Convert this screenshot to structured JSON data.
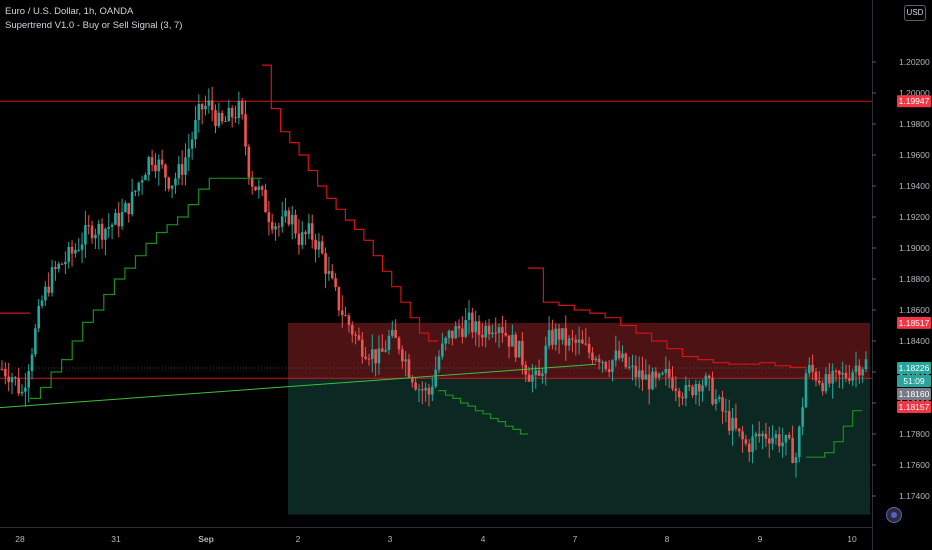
{
  "header": {
    "title": "Euro / U.S. Dollar, 1h, OANDA",
    "indicator": "Supertrend V1.0 - Buy or Sell Signal (3, 7)"
  },
  "currency_button": "USD",
  "colors": {
    "background": "#000000",
    "up": "#26a69a",
    "down": "#ef5350",
    "supertrend_up": "#1e8c1e",
    "supertrend_down": "#d0141a",
    "trendline": "#3fbf3f",
    "hline": "#c8181d",
    "axis_text": "#b2b5be",
    "badge_red": "#f23645",
    "badge_green": "#26a69a",
    "badge_gray": "#787b86",
    "short_zone": "#5a1518",
    "long_zone": "#0d2a24"
  },
  "chart_data": {
    "type": "candlestick",
    "symbol": "Euro / U.S. Dollar",
    "timeframe": "1h",
    "ylim": [
      1.172,
      1.206
    ],
    "y_ticks": [
      "1.20200",
      "1.20000",
      "1.19800",
      "1.19600",
      "1.19400",
      "1.19200",
      "1.19000",
      "1.18800",
      "1.18600",
      "1.18400",
      "1.18200",
      "1.18000",
      "1.17800",
      "1.17600",
      "1.17400"
    ],
    "x_ticks": [
      "28",
      "31",
      "Sep",
      "2",
      "3",
      "4",
      "7",
      "8",
      "9",
      "10"
    ],
    "price_badges": [
      {
        "label": "1.19947",
        "value": 1.19947,
        "color": "red"
      },
      {
        "label": "1.18517",
        "value": 1.18517,
        "color": "red"
      },
      {
        "label": "1.18226",
        "value": 1.18226,
        "color": "green"
      },
      {
        "label": "51:09",
        "value": 1.18193,
        "color": "green"
      },
      {
        "label": "1.18160",
        "value": 1.1816,
        "color": "gray"
      },
      {
        "label": "1.18157",
        "value": 1.18157,
        "color": "red"
      }
    ],
    "horizontal_lines": [
      1.19947,
      1.1816
    ],
    "close_line": 1.18226,
    "position": {
      "entry": 1.1816,
      "stop": 1.18517,
      "target": 1.1728
    },
    "trend_line": {
      "from": 1.1797,
      "to": 1.1825
    },
    "supertrend_segments": [
      {
        "trend": "down",
        "points": [
          1.1858,
          1.1858,
          1.1858,
          1.1858,
          1.1858
        ]
      },
      {
        "trend": "up",
        "points": [
          1.1803,
          1.181,
          1.182,
          1.1828,
          1.184,
          1.1852,
          1.186,
          1.187,
          1.188,
          1.1887,
          1.1895,
          1.1903,
          1.191,
          1.1915,
          1.192,
          1.1928,
          1.1938,
          1.1945,
          1.1945,
          1.1945,
          1.1945,
          1.1945
        ]
      },
      {
        "trend": "down",
        "points": [
          1.2018,
          1.199,
          1.1975,
          1.1968,
          1.196,
          1.195,
          1.194,
          1.1932,
          1.1925,
          1.1918,
          1.1912,
          1.1905,
          1.1895,
          1.1885,
          1.1875,
          1.1865,
          1.1855,
          1.1845,
          1.184
        ]
      },
      {
        "trend": "up",
        "points": [
          1.1808,
          1.1805,
          1.1803,
          1.18,
          1.1798,
          1.1795,
          1.1793,
          1.179,
          1.1788,
          1.1785,
          1.1783,
          1.178
        ]
      },
      {
        "trend": "down",
        "points": [
          1.1887,
          1.1865,
          1.1863,
          1.186,
          1.1858,
          1.1855,
          1.185,
          1.1845,
          1.184,
          1.1835,
          1.183,
          1.1828,
          1.1826,
          1.1825,
          1.1825,
          1.1826,
          1.1824,
          1.1823
        ]
      },
      {
        "trend": "up",
        "points": [
          1.1765,
          1.1765,
          1.1768,
          1.1775,
          1.1785,
          1.1795
        ]
      }
    ],
    "price_path": [
      1.1822,
      1.1818,
      1.1806,
      1.1835,
      1.1865,
      1.1882,
      1.189,
      1.1896,
      1.1905,
      1.1913,
      1.1912,
      1.1915,
      1.192,
      1.193,
      1.1946,
      1.196,
      1.1952,
      1.1942,
      1.195,
      1.1968,
      1.199,
      1.1992,
      1.1978,
      1.1985,
      1.199,
      1.1945,
      1.1935,
      1.192,
      1.1913,
      1.1922,
      1.1905,
      1.191,
      1.19,
      1.188,
      1.1862,
      1.185,
      1.1838,
      1.1834,
      1.1828,
      1.1842,
      1.1838,
      1.1822,
      1.181,
      1.1806,
      1.183,
      1.1843,
      1.1848,
      1.1852,
      1.1845,
      1.185,
      1.1853,
      1.1842,
      1.1834,
      1.182,
      1.1813,
      1.184,
      1.1845,
      1.1838,
      1.1838,
      1.1833,
      1.1832,
      1.1825,
      1.183,
      1.1822,
      1.1818,
      1.1815,
      1.1812,
      1.1818,
      1.1812,
      1.1805,
      1.1815,
      1.1812,
      1.18,
      1.179,
      1.178,
      1.1772,
      1.1778,
      1.178,
      1.1778,
      1.1773,
      1.1765,
      1.1822,
      1.1818,
      1.1812,
      1.1815,
      1.1818,
      1.1824,
      1.1826
    ]
  }
}
